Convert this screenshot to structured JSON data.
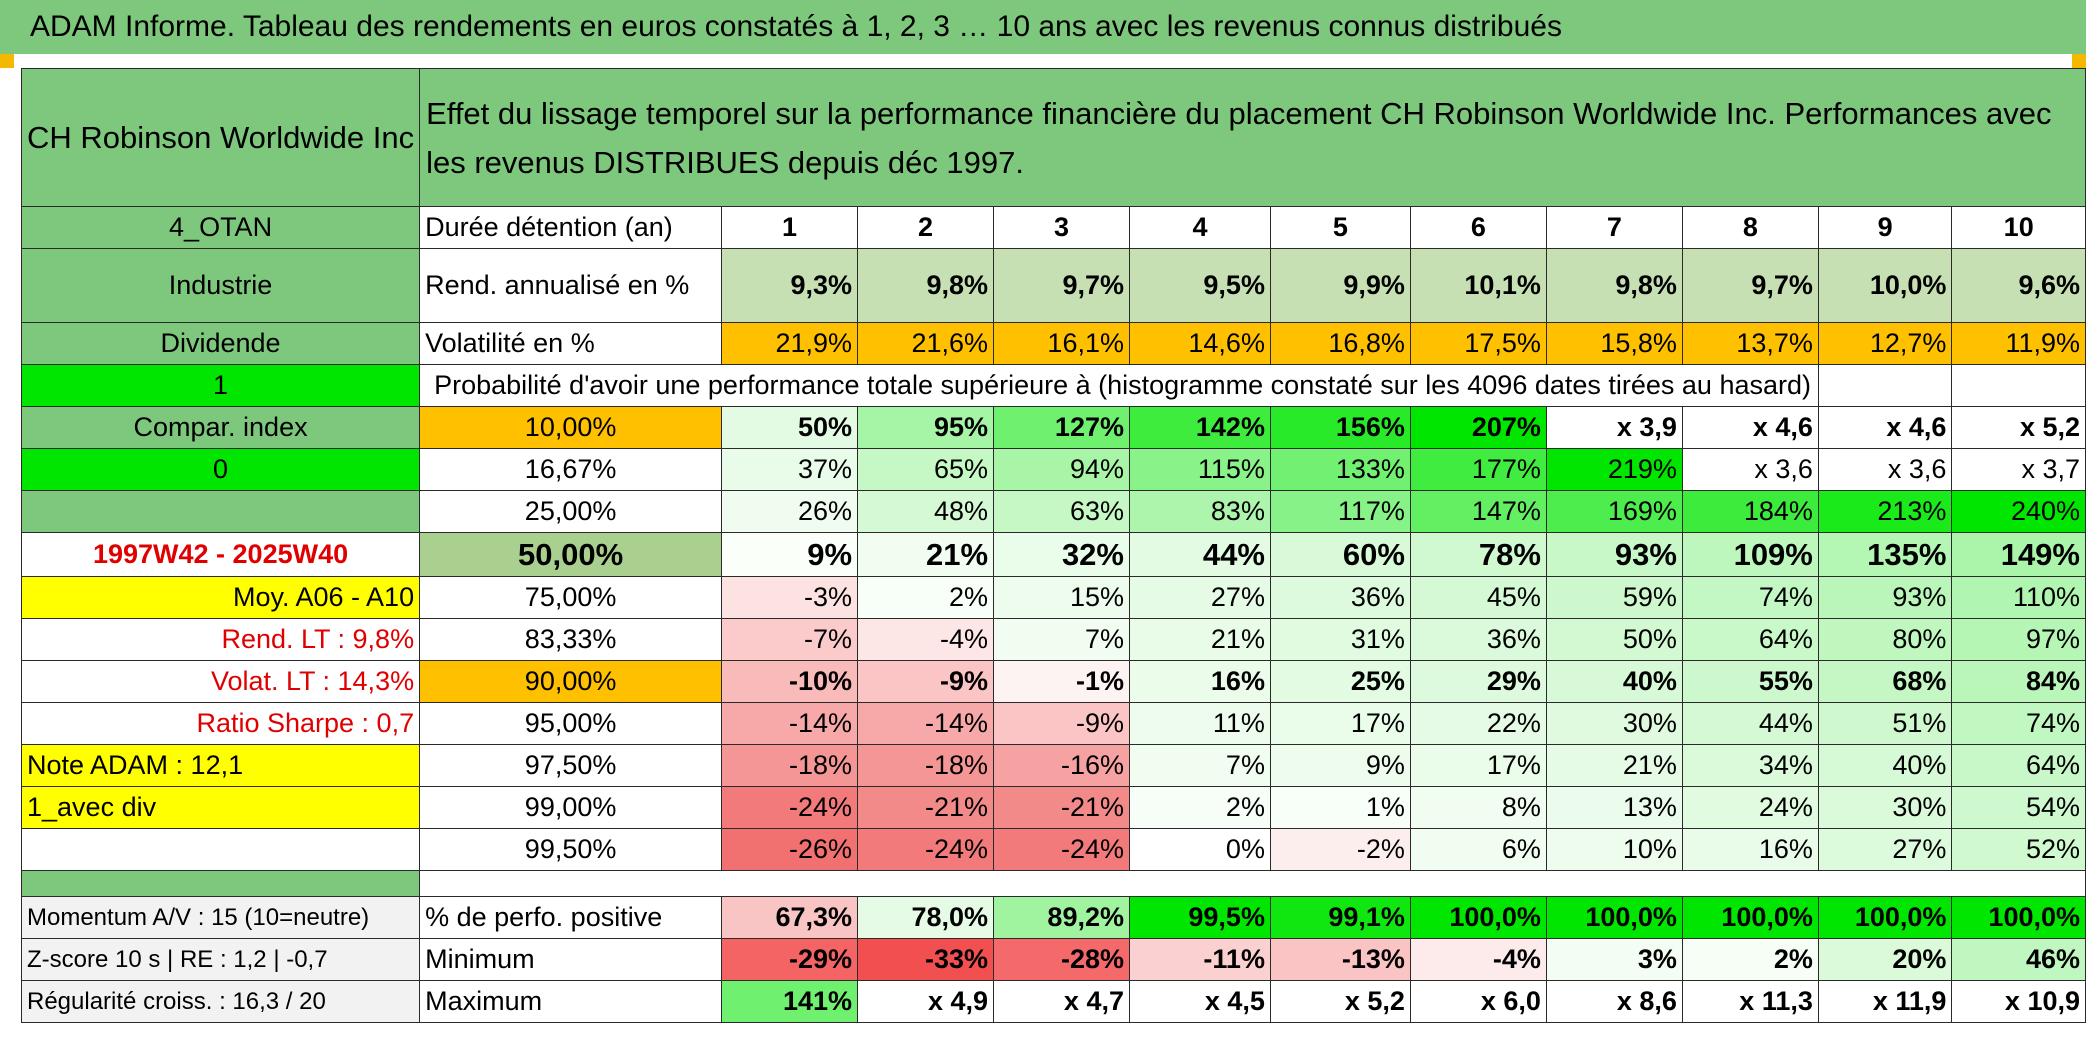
{
  "title": "ADAM Informe. Tableau des rendements en euros constatés à 1, 2, 3 … 10 ans avec les revenus connus distribués",
  "company": "CH Robinson Worldwide Inc",
  "description": "Effet du lissage temporel sur la performance financière du placement CH Robinson Worldwide Inc. Performances avec les revenus DISTRIBUES depuis déc 1997.",
  "left_labels": {
    "code": "4_OTAN",
    "sector": "Industrie",
    "type": "Dividende",
    "flag1": "1",
    "compar": "Compar. index",
    "flag0": "0",
    "period": "1997W42 - 2025W40",
    "moy": "Moy. A06 - A10",
    "rend_lt": "Rend. LT :   9,8%",
    "volat_lt": "Volat. LT :   14,3%",
    "sharpe": "Ratio Sharpe :    0,7",
    "note": "Note ADAM : 12,1",
    "avec_div": "1_avec div",
    "momentum": "Momentum A/V : 15 (10=neutre)",
    "zscore": "Z-score 10 s | RE : 1,2 | -0,7",
    "regularite": "Régularité croiss. : 16,3 / 20"
  },
  "header": {
    "duree_label": "Durée détention (an)",
    "years": [
      "1",
      "2",
      "3",
      "4",
      "5",
      "6",
      "7",
      "8",
      "9",
      "10"
    ]
  },
  "rend": {
    "label": "Rend. annualisé en %",
    "values": [
      "9,3%",
      "9,8%",
      "9,7%",
      "9,5%",
      "9,9%",
      "10,1%",
      "9,8%",
      "9,7%",
      "10,0%",
      "9,6%"
    ]
  },
  "vol": {
    "label": "Volatilité en %",
    "values": [
      "21,9%",
      "21,6%",
      "16,1%",
      "14,6%",
      "16,8%",
      "17,5%",
      "15,8%",
      "13,7%",
      "12,7%",
      "11,9%"
    ]
  },
  "prob_title": "Probabilité d'avoir une performance totale supérieure à (histogramme constaté sur les 4096 dates tirées au hasard)",
  "prob_rows": [
    {
      "pct": "10,00%",
      "values": [
        "50%",
        "95%",
        "127%",
        "142%",
        "156%",
        "207%",
        "x 3,9",
        "x 4,6",
        "x 4,6",
        "x 5,2"
      ]
    },
    {
      "pct": "16,67%",
      "values": [
        "37%",
        "65%",
        "94%",
        "115%",
        "133%",
        "177%",
        "219%",
        "x 3,6",
        "x 3,6",
        "x 3,7"
      ]
    },
    {
      "pct": "25,00%",
      "values": [
        "26%",
        "48%",
        "63%",
        "83%",
        "117%",
        "147%",
        "169%",
        "184%",
        "213%",
        "240%"
      ]
    },
    {
      "pct": "50,00%",
      "values": [
        "9%",
        "21%",
        "32%",
        "44%",
        "60%",
        "78%",
        "93%",
        "109%",
        "135%",
        "149%"
      ]
    },
    {
      "pct": "75,00%",
      "values": [
        "-3%",
        "2%",
        "15%",
        "27%",
        "36%",
        "45%",
        "59%",
        "74%",
        "93%",
        "110%"
      ]
    },
    {
      "pct": "83,33%",
      "values": [
        "-7%",
        "-4%",
        "7%",
        "21%",
        "31%",
        "36%",
        "50%",
        "64%",
        "80%",
        "97%"
      ]
    },
    {
      "pct": "90,00%",
      "values": [
        "-10%",
        "-9%",
        "-1%",
        "16%",
        "25%",
        "29%",
        "40%",
        "55%",
        "68%",
        "84%"
      ]
    },
    {
      "pct": "95,00%",
      "values": [
        "-14%",
        "-14%",
        "-9%",
        "11%",
        "17%",
        "22%",
        "30%",
        "44%",
        "51%",
        "74%"
      ]
    },
    {
      "pct": "97,50%",
      "values": [
        "-18%",
        "-18%",
        "-16%",
        "7%",
        "9%",
        "17%",
        "21%",
        "34%",
        "40%",
        "64%"
      ]
    },
    {
      "pct": "99,00%",
      "values": [
        "-24%",
        "-21%",
        "-21%",
        "2%",
        "1%",
        "8%",
        "13%",
        "24%",
        "30%",
        "54%"
      ]
    },
    {
      "pct": "99,50%",
      "values": [
        "-26%",
        "-24%",
        "-24%",
        "0%",
        "-2%",
        "6%",
        "10%",
        "16%",
        "27%",
        "52%"
      ]
    }
  ],
  "positive": {
    "label": "% de perfo. positive",
    "values": [
      "67,3%",
      "78,0%",
      "89,2%",
      "99,5%",
      "99,1%",
      "100,0%",
      "100,0%",
      "100,0%",
      "100,0%",
      "100,0%"
    ]
  },
  "minimum": {
    "label": "Minimum",
    "values": [
      "-29%",
      "-33%",
      "-28%",
      "-11%",
      "-13%",
      "-4%",
      "3%",
      "2%",
      "20%",
      "46%"
    ]
  },
  "maximum": {
    "label": "Maximum",
    "values": [
      "141%",
      "x 4,9",
      "x 4,7",
      "x 4,5",
      "x 5,2",
      "x 6,0",
      "x 8,6",
      "x 11,3",
      "x 11,9",
      "x 10,9"
    ]
  },
  "colors": {
    "header_green": "#7ec87e",
    "rend_green": "#c6e0b4",
    "vol_orange": "#ffc000",
    "bright_green": "#00e600",
    "yellow": "#ffff00",
    "red_text": "#e00000"
  },
  "cell_colors": {
    "prob": [
      [
        "#e2fbe2",
        "#a6f5a6",
        "#6ff06f",
        "#3eec3e",
        "#28ea28",
        "#00e600",
        "#ffffff",
        "#ffffff",
        "#ffffff",
        "#ffffff"
      ],
      [
        "#e9fce9",
        "#c5f8c5",
        "#a8f5a8",
        "#89f289",
        "#71f071",
        "#41ec41",
        "#00e600",
        "#ffffff",
        "#ffffff",
        "#ffffff"
      ],
      [
        "#effcef",
        "#d4f9d4",
        "#c6f8c6",
        "#adf5ad",
        "#87f287",
        "#62ef62",
        "#4ded4d",
        "#3deb3d",
        "#1ae91a",
        "#00e600"
      ],
      [
        "#fafffa",
        "#f2fdf2",
        "#eafcea",
        "#e3fbe3",
        "#d9fad9",
        "#d0f9d0",
        "#c8f8c8",
        "#bdf7bd",
        "#b4f6b4",
        "#aaf5aa"
      ],
      [
        "#fde2e2",
        "#f8fff8",
        "#eefcee",
        "#e6fbe6",
        "#defade",
        "#d5f9d5",
        "#cdf8cd",
        "#c3f7c3",
        "#baf6ba",
        "#b0f5b0"
      ],
      [
        "#fbcaca",
        "#fde6e6",
        "#f2fdf2",
        "#e8fce8",
        "#e0fbe0",
        "#dbfadb",
        "#d2f9d2",
        "#c9f8c9",
        "#bff7bf",
        "#b5f6b5"
      ],
      [
        "#f9baba",
        "#fbc5c5",
        "#fef3f3",
        "#ebfceb",
        "#e3fbe3",
        "#defade",
        "#d7f9d7",
        "#cdf8cd",
        "#c4f7c4",
        "#baf6ba"
      ],
      [
        "#f7a8a8",
        "#f7a8a8",
        "#fbc5c5",
        "#eefcee",
        "#eafcea",
        "#e5fbe5",
        "#dffadf",
        "#d4f9d4",
        "#cff8cf",
        "#c1f7c1"
      ],
      [
        "#f59696",
        "#f59696",
        "#f6a2a2",
        "#f1fdf1",
        "#eefcee",
        "#eafcea",
        "#e6fbe6",
        "#dafada",
        "#d6f9d6",
        "#c8f8c8"
      ],
      [
        "#f27a7a",
        "#f38a8a",
        "#f38a8a",
        "#f7fef7",
        "#f8fef8",
        "#f0fdf0",
        "#ecfcec",
        "#e0fbe0",
        "#dafada",
        "#cef8ce"
      ],
      [
        "#f17070",
        "#f27a7a",
        "#f27a7a",
        "#ffffff",
        "#fdeeee",
        "#f1fdf1",
        "#eefcee",
        "#e9fce9",
        "#dcfadc",
        "#d0f9d0"
      ]
    ],
    "positive": [
      "#f9c4c4",
      "#e5fbe5",
      "#a0f4a0",
      "#00e600",
      "#10e710",
      "#00e600",
      "#00e600",
      "#00e600",
      "#00e600",
      "#00e600"
    ],
    "minimum": [
      "#f46464",
      "#f25050",
      "#f46a6a",
      "#fbd0d0",
      "#fac4c4",
      "#fdeaea",
      "#f4fdf4",
      "#f6fef6",
      "#dafada",
      "#c0f7c0"
    ],
    "maximum": [
      "#6ff06f",
      "#ffffff",
      "#ffffff",
      "#ffffff",
      "#ffffff",
      "#ffffff",
      "#ffffff",
      "#ffffff",
      "#ffffff",
      "#ffffff"
    ]
  }
}
